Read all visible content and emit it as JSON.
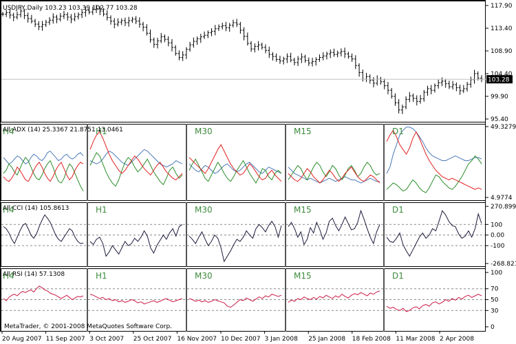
{
  "colors": {
    "bg": "#ffffff",
    "frame": "#000000",
    "price_bar": "#000000",
    "adx": "#4a79b8",
    "plus_di": "#2a8c2a",
    "minus_di": "#e02020",
    "cci": "#1a1a3a",
    "rsi": "#cc1a45",
    "timeframe_label": "#3d8a3d",
    "grid_dash": "#888888",
    "current_price_tag": "#000000"
  },
  "chart_data": [
    {
      "type": "ohlc",
      "title": "USDJPY,Daily",
      "ohlc_header": "103.23 103.39 102.77 103.28",
      "current_price": "103.28",
      "ylim": [
        95.4,
        117.9
      ],
      "y_ticks": [
        "117.90",
        "113.40",
        "108.90",
        "104.40",
        "99.90",
        "95.40"
      ],
      "x_ticks": [
        "20 Aug 2007",
        "11 Sep 2007",
        "3 Oct 2007",
        "25 Oct 2007",
        "16 Nov 2007",
        "10 Dec 2007",
        "3 Jan 2008",
        "25 Jan 2008",
        "18 Feb 2008",
        "11 Mar 2008",
        "2 Apr 2008"
      ],
      "close_series": [
        116.2,
        116.5,
        116.0,
        115.6,
        116.1,
        116.8,
        115.9,
        115.3,
        114.8,
        114.2,
        113.7,
        114.1,
        114.6,
        115.0,
        115.6,
        115.2,
        115.8,
        116.1,
        115.6,
        115.2,
        115.7,
        116.1,
        116.5,
        116.9,
        116.6,
        117.1,
        117.3,
        116.8,
        116.2,
        115.5,
        114.8,
        114.2,
        114.6,
        114.9,
        114.5,
        114.9,
        115.2,
        114.8,
        114.2,
        113.6,
        112.4,
        111.1,
        110.2,
        110.9,
        111.7,
        111.2,
        110.5,
        109.6,
        108.4,
        107.6,
        108.1,
        109.2,
        110.1,
        110.8,
        111.3,
        111.7,
        112.0,
        112.5,
        112.8,
        113.3,
        113.7,
        113.9,
        113.5,
        114.0,
        114.5,
        114.2,
        113.0,
        111.8,
        110.4,
        109.3,
        109.8,
        110.1,
        109.6,
        109.0,
        108.2,
        107.8,
        107.2,
        106.9,
        107.3,
        107.8,
        107.1,
        106.6,
        107.3,
        107.7,
        107.0,
        106.5,
        106.8,
        107.2,
        107.6,
        107.9,
        108.3,
        108.6,
        108.2,
        108.5,
        108.8,
        108.3,
        107.8,
        107.3,
        106.0,
        104.6,
        103.3,
        103.8,
        103.1,
        102.5,
        103.3,
        102.8,
        102.0,
        101.1,
        99.9,
        98.6,
        97.2,
        97.8,
        99.3,
        100.0,
        99.5,
        98.9,
        99.4,
        100.7,
        101.4,
        101.1,
        102.0,
        102.6,
        102.9,
        102.4,
        101.8,
        102.2,
        101.6,
        101.0,
        101.4,
        102.3,
        103.2,
        104.4,
        103.5,
        103.3
      ]
    },
    {
      "type": "line",
      "title": "All ADX (14) 25.3367 21.8751 13.0461",
      "ylim": [
        4.9774,
        49.3279
      ],
      "y_ticks": [
        "49.3279",
        "4.9774"
      ],
      "panels": [
        "H4",
        "H1",
        "M30",
        "M15",
        "D1"
      ],
      "series": [
        {
          "name": "ADX",
          "values": [
            [
              30,
              28,
              26,
              27,
              29,
              31,
              30,
              28,
              26,
              27,
              30,
              32,
              31,
              29,
              28,
              30,
              33,
              34,
              32,
              30,
              28,
              29,
              31,
              32,
              30,
              29,
              30,
              32,
              33,
              31
            ],
            [
              28,
              27,
              26,
              27,
              29,
              32,
              34,
              33,
              31,
              29,
              27,
              26,
              25,
              27,
              29,
              31,
              33,
              35,
              34,
              32,
              30,
              28,
              26,
              25,
              24,
              25,
              26,
              28,
              27,
              26
            ],
            [
              26,
              24,
              22,
              21,
              23,
              25,
              24,
              22,
              20,
              21,
              23,
              25,
              26,
              24,
              22,
              21,
              22,
              24,
              26,
              27,
              25,
              23,
              21,
              20,
              22,
              24,
              23,
              22,
              21,
              20
            ],
            [
              24,
              22,
              20,
              19,
              18,
              17,
              16,
              17,
              16,
              15,
              14,
              15,
              16,
              17,
              16,
              15,
              16,
              17,
              18,
              17,
              16,
              16,
              15,
              14,
              15,
              16,
              17,
              16,
              15,
              15
            ],
            [
              20,
              24,
              32,
              38,
              44,
              47,
              49,
              49,
              48,
              46,
              43,
              40,
              36,
              33,
              31,
              30,
              29,
              28,
              28,
              29,
              30,
              31,
              30,
              29,
              28,
              28,
              29,
              30,
              30,
              29
            ]
          ]
        },
        {
          "name": "+DI",
          "values": [
            [
              20,
              22,
              26,
              24,
              21,
              19,
              23,
              27,
              30,
              28,
              24,
              20,
              17,
              16,
              19,
              23,
              26,
              28,
              24,
              19,
              15,
              14,
              17,
              22,
              26,
              24,
              20,
              16,
              12,
              9
            ],
            [
              25,
              29,
              33,
              31,
              26,
              21,
              17,
              14,
              12,
              16,
              22,
              27,
              30,
              28,
              24,
              21,
              23,
              26,
              29,
              25,
              21,
              18,
              15,
              13,
              17,
              22,
              24,
              20,
              17,
              19
            ],
            [
              22,
              26,
              29,
              25,
              21,
              17,
              15,
              19,
              23,
              27,
              24,
              20,
              17,
              15,
              18,
              22,
              25,
              28,
              24,
              20,
              17,
              14,
              18,
              23,
              22,
              18,
              16,
              20,
              22,
              20
            ],
            [
              16,
              19,
              22,
              25,
              23,
              19,
              16,
              20,
              24,
              27,
              25,
              21,
              18,
              21,
              25,
              23,
              19,
              16,
              19,
              23,
              25,
              22,
              18,
              20,
              24,
              27,
              25,
              21,
              19,
              20
            ],
            [
              10,
              12,
              14,
              13,
              11,
              9,
              10,
              13,
              16,
              14,
              11,
              9,
              8,
              11,
              15,
              19,
              18,
              15,
              13,
              11,
              10,
              12,
              15,
              18,
              22,
              26,
              28,
              31,
              29,
              26
            ]
          ]
        },
        {
          "name": "-DI",
          "values": [
            [
              18,
              16,
              15,
              17,
              20,
              24,
              22,
              19,
              16,
              15,
              18,
              22,
              25,
              27,
              24,
              20,
              17,
              15,
              18,
              22,
              25,
              27,
              23,
              19,
              16,
              18,
              22,
              25,
              27,
              26
            ],
            [
              35,
              40,
              44,
              46,
              42,
              37,
              32,
              28,
              25,
              22,
              20,
              22,
              25,
              28,
              31,
              29,
              26,
              23,
              21,
              19,
              22,
              25,
              27,
              24,
              21,
              19,
              17,
              16,
              18,
              20
            ],
            [
              30,
              28,
              26,
              24,
              22,
              20,
              23,
              27,
              31,
              35,
              38,
              34,
              30,
              26,
              23,
              21,
              19,
              20,
              23,
              26,
              24,
              21,
              18,
              16,
              17,
              20,
              22,
              19,
              17,
              15
            ],
            [
              20,
              18,
              16,
              15,
              17,
              20,
              23,
              21,
              18,
              16,
              14,
              16,
              19,
              22,
              20,
              17,
              15,
              17,
              20,
              22,
              24,
              21,
              18,
              16,
              15,
              17,
              19,
              18,
              16,
              14
            ],
            [
              40,
              44,
              47,
              43,
              38,
              35,
              32,
              36,
              42,
              46,
              42,
              37,
              32,
              28,
              25,
              22,
              20,
              18,
              17,
              16,
              17,
              16,
              15,
              14,
              13,
              12,
              11,
              10,
              11,
              10
            ]
          ]
        }
      ]
    },
    {
      "type": "line",
      "title": "All CCI (14) 105.8613",
      "ylim": [
        -268.821,
        270.8991
      ],
      "y_ticks": [
        "270.8991",
        "100",
        "0.00",
        "-100",
        "-268.821"
      ],
      "panels": [
        "H4",
        "H1",
        "M30",
        "M15",
        "D1"
      ],
      "series": [
        {
          "name": "CCI",
          "values": [
            [
              80,
              60,
              20,
              -40,
              -80,
              -20,
              40,
              90,
              110,
              60,
              0,
              -30,
              10,
              80,
              140,
              190,
              160,
              120,
              60,
              0,
              -40,
              -60,
              -20,
              20,
              60,
              40,
              -20,
              -60,
              -80,
              -75
            ],
            [
              -60,
              -90,
              -40,
              -20,
              -80,
              -200,
              -160,
              -100,
              -140,
              -180,
              -120,
              -60,
              -100,
              -80,
              -30,
              -60,
              -20,
              40,
              -10,
              -120,
              -170,
              -100,
              -50,
              0,
              -40,
              20,
              60,
              -10,
              80,
              100
            ],
            [
              -10,
              -40,
              -80,
              -20,
              30,
              -40,
              -100,
              -60,
              0,
              -30,
              -120,
              -250,
              -200,
              -150,
              -90,
              -40,
              -60,
              -20,
              40,
              0,
              -30,
              60,
              100,
              70,
              30,
              90,
              130,
              80,
              -20,
              90
            ],
            [
              80,
              120,
              60,
              -20,
              30,
              -90,
              -40,
              70,
              20,
              120,
              50,
              -40,
              20,
              130,
              160,
              90,
              40,
              100,
              170,
              110,
              50,
              60,
              120,
              230,
              150,
              60,
              -20,
              -80,
              30,
              100
            ],
            [
              -20,
              -60,
              -70,
              -30,
              20,
              -90,
              -150,
              -200,
              -140,
              -80,
              -20,
              20,
              -30,
              0,
              60,
              40,
              130,
              230,
              190,
              130,
              90,
              80,
              10,
              -30,
              -10,
              40,
              -20,
              60,
              200,
              110
            ]
          ]
        }
      ]
    },
    {
      "type": "line",
      "title": "All RSI (14) 57.1308",
      "ylim": [
        0,
        100
      ],
      "y_ticks": [
        "100",
        "70",
        "50",
        "30",
        "0"
      ],
      "panels": [
        "H4",
        "H1",
        "M30",
        "M15",
        "D1"
      ],
      "series": [
        {
          "name": "RSI",
          "values": [
            [
              52,
              48,
              54,
              58,
              60,
              57,
              62,
              65,
              63,
              66,
              68,
              64,
              70,
              75,
              72,
              68,
              66,
              62,
              60,
              58,
              55,
              52,
              55,
              58,
              54,
              50,
              53,
              56,
              55,
              57
            ],
            [
              60,
              58,
              55,
              52,
              54,
              50,
              52,
              48,
              50,
              46,
              48,
              45,
              47,
              50,
              48,
              44,
              46,
              42,
              44,
              46,
              48,
              45,
              47,
              50,
              52,
              49,
              46,
              48,
              50,
              52
            ],
            [
              52,
              50,
              47,
              49,
              46,
              48,
              45,
              47,
              50,
              48,
              46,
              44,
              38,
              36,
              40,
              45,
              50,
              48,
              53,
              50,
              47,
              51,
              55,
              52,
              57,
              55,
              60,
              58,
              56,
              58
            ],
            [
              45,
              49,
              47,
              52,
              50,
              55,
              52,
              50,
              54,
              51,
              56,
              53,
              58,
              55,
              52,
              57,
              54,
              60,
              56,
              53,
              58,
              61,
              59,
              63,
              60,
              57,
              62,
              60,
              64,
              66
            ],
            [
              38,
              34,
              36,
              32,
              30,
              34,
              28,
              30,
              35,
              37,
              33,
              39,
              41,
              38,
              44,
              46,
              42,
              45,
              50,
              47,
              52,
              49,
              54,
              51,
              56,
              58,
              54,
              57,
              60,
              57
            ]
          ]
        }
      ]
    }
  ],
  "footer": {
    "copyright": "MetaTrader, © 2001-2008 MetaQuotes Software Corp."
  }
}
